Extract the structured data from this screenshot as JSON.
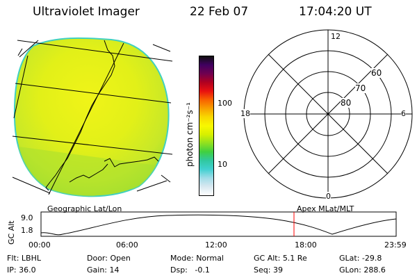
{
  "header": {
    "instrument": "Ultraviolet Imager",
    "date": "22 Feb 07",
    "time": "17:04:20 UT"
  },
  "colorbar": {
    "unit_label": "photon cm⁻²s⁻¹",
    "tick_100": "100",
    "tick_10": "10",
    "colors": [
      "#ffffff",
      "#d8e8f0",
      "#a0dce8",
      "#40d0d0",
      "#30c8a0",
      "#40d040",
      "#90e020",
      "#d8f000",
      "#f8f800",
      "#f8d800",
      "#f8a000",
      "#f86000",
      "#e81010",
      "#b00020",
      "#700050",
      "#400060",
      "#101010"
    ]
  },
  "polar": {
    "labels": {
      "top": "12",
      "left": "18",
      "right": "6",
      "bottom": "0",
      "r60": "60",
      "r70": "70",
      "r80": "80"
    }
  },
  "map": {
    "left_caption": "Geographic Lat/Lon",
    "right_caption": "Apex MLat/MLT"
  },
  "timeline": {
    "ylabel": "GC Alt",
    "y_top": "9.0",
    "y_bottom": "1.8",
    "x_ticks": [
      "00:00",
      "06:00",
      "12:00",
      "18:00",
      "23:59"
    ],
    "marker_color": "#ff0000"
  },
  "status": {
    "row1": [
      {
        "label": "Flt:",
        "value": "LBHL"
      },
      {
        "label": "Door:",
        "value": "Open"
      },
      {
        "label": "Mode:",
        "value": "Normal"
      },
      {
        "label": "GC Alt:",
        "value": "5.1 Re"
      },
      {
        "label": "GLat:",
        "value": "-29.8"
      }
    ],
    "row2": [
      {
        "label": "IP:",
        "value": "36.0"
      },
      {
        "label": "Gain:",
        "value": "14"
      },
      {
        "label": "Dsp:",
        "value": "  -0.1"
      },
      {
        "label": "Seq:",
        "value": "39"
      },
      {
        "label": "GLon:",
        "value": "288.6"
      }
    ]
  }
}
